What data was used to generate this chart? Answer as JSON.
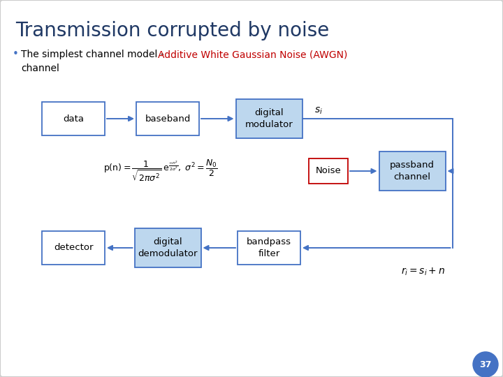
{
  "title": "Transmission corrupted by noise",
  "title_color": "#1F3864",
  "bg_color": "#FFFFFF",
  "bullet_text_black": "The simplest channel model - ",
  "bullet_text_red": "Additive White Gaussian Noise (AWGN)",
  "bullet_text_black2": "channel",
  "slide_number": "37",
  "arrow_color": "#4472C4",
  "formula_color": "#000000",
  "box_edge_blue": "#4472C4",
  "box_edge_red": "#C00000",
  "box_fill_white": "#FFFFFF",
  "box_fill_blue": "#BDD7EE",
  "noise_text_color": "#C00000"
}
